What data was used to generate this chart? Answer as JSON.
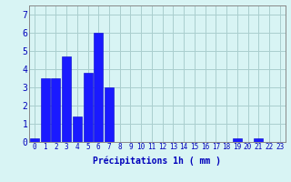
{
  "values": [
    0.2,
    3.5,
    3.5,
    4.7,
    1.4,
    3.8,
    6.0,
    3.0,
    0,
    0,
    0,
    0,
    0,
    0,
    0,
    0,
    0,
    0,
    0,
    0.2,
    0,
    0.2,
    0,
    0
  ],
  "bar_color": "#1a1aff",
  "bar_edge_color": "#0000cc",
  "background_color": "#d8f4f4",
  "grid_color": "#aacece",
  "xlabel": "Précipitations 1h ( mm )",
  "xlabel_color": "#0000bb",
  "tick_color": "#0000bb",
  "axis_color": "#888888",
  "ylim": [
    0,
    7.5
  ],
  "xlim": [
    -0.5,
    23.5
  ],
  "yticks": [
    0,
    1,
    2,
    3,
    4,
    5,
    6,
    7
  ],
  "xticks": [
    0,
    1,
    2,
    3,
    4,
    5,
    6,
    7,
    8,
    9,
    10,
    11,
    12,
    13,
    14,
    15,
    16,
    17,
    18,
    19,
    20,
    21,
    22,
    23
  ],
  "tick_fontsize": 5.5,
  "ytick_fontsize": 7,
  "xlabel_fontsize": 7
}
